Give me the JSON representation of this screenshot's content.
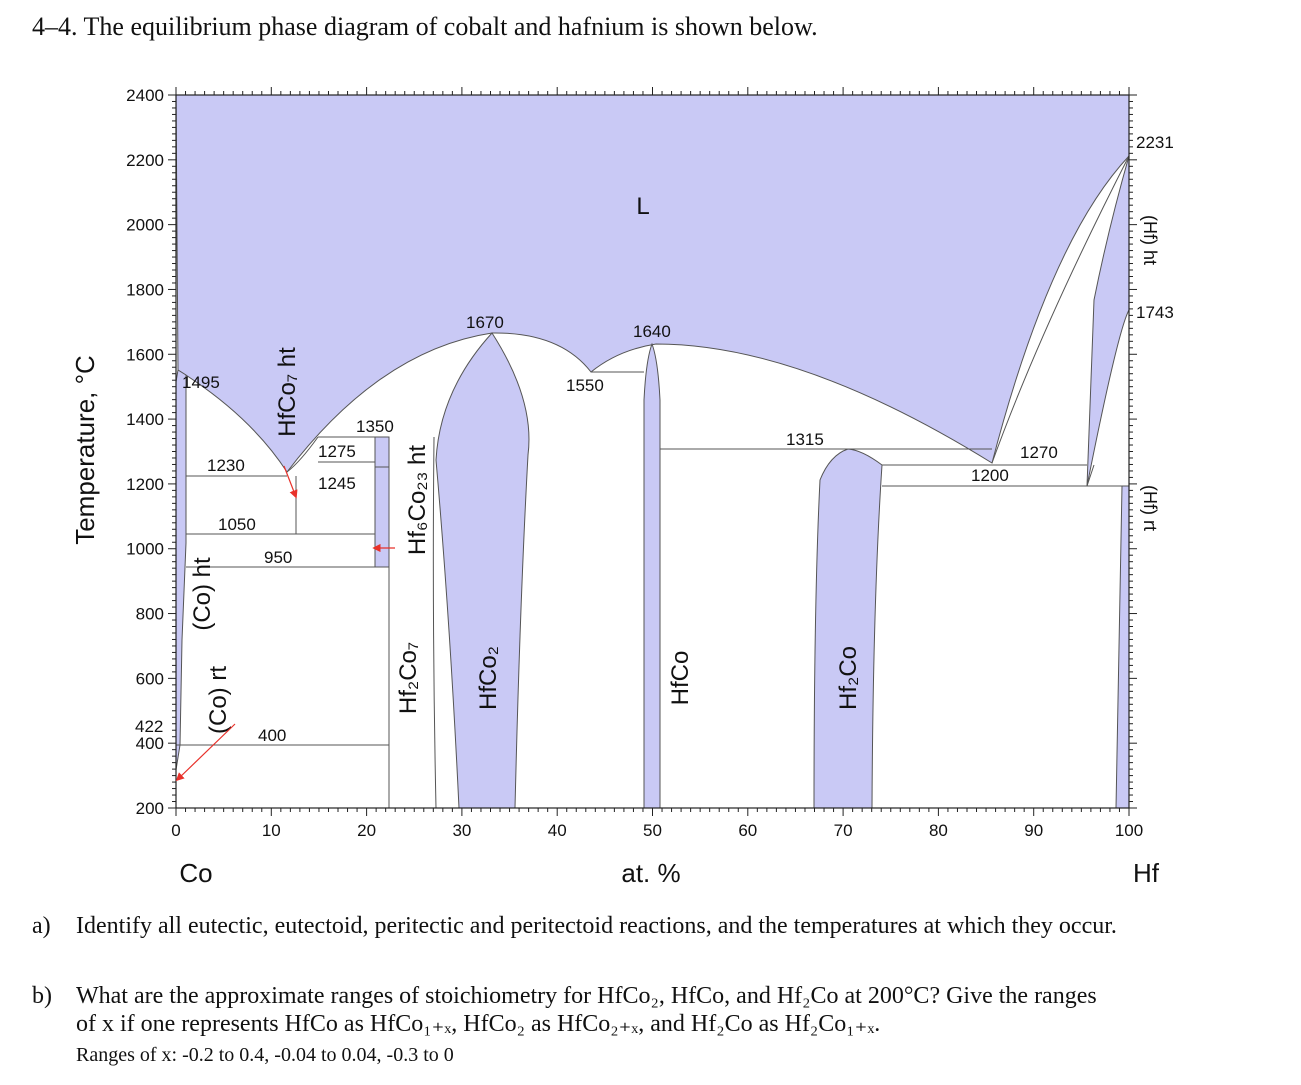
{
  "header": "4–4. The equilibrium phase diagram of cobalt and hafnium is shown below.",
  "colors": {
    "phase_fill": "#c9c9f5",
    "line": "#555555",
    "arrow": "#e8312a"
  },
  "axes": {
    "y_title": "Temperature, °C",
    "x_title": "at. %",
    "x_left_label": "Co",
    "x_right_label": "Hf",
    "y_ticks": [
      "200",
      "400",
      "600",
      "800",
      "1000",
      "1200",
      "1400",
      "1600",
      "1800",
      "2000",
      "2200",
      "2400"
    ],
    "x_ticks": [
      "0",
      "10",
      "20",
      "30",
      "40",
      "50",
      "60",
      "70",
      "80",
      "90",
      "100"
    ]
  },
  "phase_labels": {
    "liquid": "L",
    "co_ht": "(Co) ht",
    "co_rt": "(Co) rt",
    "hfco7_ht": "HfCo₇ ht",
    "hf6co23_ht": "Hf₆Co₂₃ ht",
    "hf2co7": "Hf₂Co₇",
    "hfco2": "HfCo₂",
    "hfco": "HfCo",
    "hf2co": "Hf₂Co",
    "hf_ht": "(Hf) ht",
    "hf_rt": "(Hf) rt"
  },
  "temperature_labels": {
    "t1495": "1495",
    "t1230": "1230",
    "t1050": "1050",
    "t950": "950",
    "t422": "422",
    "t400": "400",
    "t1350": "1350",
    "t1275": "1275",
    "t1245": "1245",
    "t1670": "1670",
    "t1550": "1550",
    "t1640": "1640",
    "t1315": "1315",
    "t1270": "1270",
    "t1200": "1200",
    "t2231": "2231",
    "t1743": "1743"
  },
  "questions": {
    "a_label": "a)",
    "a_text": "Identify all eutectic, eutectoid, peritectic and peritectoid reactions, and the temperatures at which they occur.",
    "b_label": "b)",
    "b_text_1": "What are the approximate ranges of stoichiometry for HfCo₂, HfCo, and Hf₂Co at 200°C? Give the ranges",
    "b_text_2": "of x if one represents HfCo as HfCo₁₊ₓ, HfCo₂ as HfCo₂₊ₓ, and Hf₂Co as Hf₂Co₁₊ₓ.",
    "answer": "Ranges of x: -0.2 to 0.4, -0.04 to 0.04, -0.3 to 0"
  }
}
